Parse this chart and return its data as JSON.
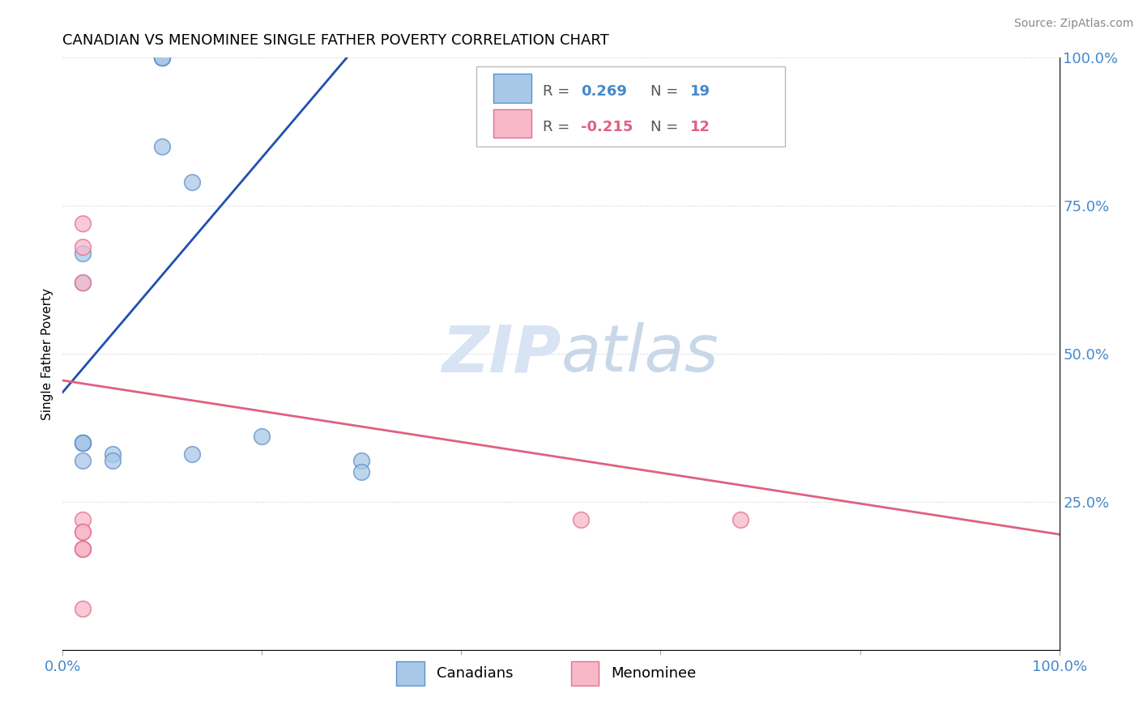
{
  "title": "CANADIAN VS MENOMINEE SINGLE FATHER POVERTY CORRELATION CHART",
  "source": "Source: ZipAtlas.com",
  "ylabel": "Single Father Poverty",
  "xlim": [
    0.0,
    1.0
  ],
  "ylim": [
    0.0,
    1.0
  ],
  "ytick_positions": [
    0.25,
    0.5,
    0.75,
    1.0
  ],
  "canadian_R": 0.269,
  "canadian_N": 19,
  "menominee_R": -0.215,
  "menominee_N": 12,
  "canadian_color": "#A8C8E8",
  "canadian_edge": "#6090C8",
  "menominee_color": "#F8B8C8",
  "menominee_edge": "#E07090",
  "trend_canadian_color": "#2050B0",
  "trend_menominee_color": "#E06080",
  "watermark_color": "#D8E4F4",
  "canadian_x": [
    0.1,
    0.1,
    0.1,
    0.1,
    0.1,
    0.13,
    0.02,
    0.02,
    0.02,
    0.02,
    0.02,
    0.02,
    0.02,
    0.2,
    0.05,
    0.05,
    0.13,
    0.3,
    0.3
  ],
  "canadian_y": [
    1.0,
    1.0,
    1.0,
    1.0,
    0.85,
    0.79,
    0.67,
    0.62,
    0.35,
    0.35,
    0.35,
    0.35,
    0.32,
    0.36,
    0.33,
    0.32,
    0.33,
    0.32,
    0.3
  ],
  "menominee_x": [
    0.02,
    0.02,
    0.02,
    0.02,
    0.02,
    0.02,
    0.02,
    0.02,
    0.02,
    0.02,
    0.52,
    0.68
  ],
  "menominee_y": [
    0.72,
    0.68,
    0.62,
    0.22,
    0.2,
    0.2,
    0.17,
    0.17,
    0.17,
    0.07,
    0.22,
    0.22
  ],
  "grid_color": "#CCCCCC",
  "background_color": "#FFFFFF",
  "title_fontsize": 13,
  "axis_label_color": "#4488CC",
  "legend_R_color_canadian": "#4488CC",
  "legend_R_color_menominee": "#E06080",
  "canadian_trend_x0": 0.0,
  "canadian_trend_y0": 0.435,
  "canadian_trend_x1": 0.285,
  "canadian_trend_y1": 1.0,
  "canadian_trend_dashed_x0": 0.27,
  "canadian_trend_dashed_x1": 1.0,
  "menominee_trend_x0": 0.0,
  "menominee_trend_y0": 0.455,
  "menominee_trend_x1": 1.0,
  "menominee_trend_y1": 0.195
}
